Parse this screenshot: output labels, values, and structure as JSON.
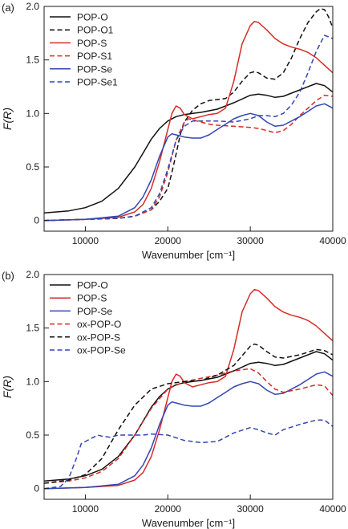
{
  "chart_data": [
    {
      "type": "line",
      "panel_label": "(a)",
      "xlabel": "Wavenumber [cm⁻¹]",
      "ylabel": "F(R)",
      "xlim": [
        5000,
        40000
      ],
      "ylim": [
        -0.1,
        2.0
      ],
      "xticks": [
        10000,
        20000,
        30000,
        40000
      ],
      "yticks": [
        0,
        0.5,
        1.0,
        1.5,
        2.0
      ],
      "ytick_labels": [
        "0",
        "0.5",
        "1.0",
        "1.5",
        "2.0"
      ],
      "legend_position": "top-left",
      "series": [
        {
          "name": "POP-O",
          "color": "#111111",
          "dash": "solid",
          "x": [
            5000,
            8000,
            10000,
            12000,
            14000,
            16000,
            17000,
            18000,
            19000,
            20000,
            21000,
            22000,
            23000,
            24000,
            26000,
            28000,
            30000,
            31000,
            32000,
            33000,
            34000,
            36000,
            38000,
            39000,
            40000
          ],
          "y": [
            0.07,
            0.09,
            0.12,
            0.18,
            0.3,
            0.5,
            0.63,
            0.76,
            0.86,
            0.93,
            0.97,
            0.99,
            1.0,
            1.01,
            1.04,
            1.1,
            1.17,
            1.18,
            1.17,
            1.15,
            1.16,
            1.22,
            1.28,
            1.26,
            1.2
          ]
        },
        {
          "name": "POP-O1",
          "color": "#111111",
          "dash": "dashed",
          "x": [
            5000,
            10000,
            14000,
            16000,
            18000,
            19000,
            20000,
            20500,
            21000,
            21500,
            22000,
            23000,
            24000,
            25000,
            26000,
            27000,
            28000,
            29000,
            30000,
            30500,
            31000,
            32000,
            33000,
            34000,
            35000,
            36000,
            37000,
            38000,
            38500,
            39000,
            39500,
            40000
          ],
          "y": [
            0.0,
            0.01,
            0.02,
            0.04,
            0.1,
            0.18,
            0.3,
            0.45,
            0.62,
            0.8,
            0.92,
            1.03,
            1.09,
            1.12,
            1.13,
            1.14,
            1.2,
            1.3,
            1.38,
            1.39,
            1.38,
            1.33,
            1.32,
            1.38,
            1.52,
            1.7,
            1.85,
            1.95,
            1.98,
            1.97,
            1.9,
            1.8
          ]
        },
        {
          "name": "POP-S",
          "color": "#d62b26",
          "dash": "solid",
          "x": [
            5000,
            10000,
            14000,
            16000,
            17000,
            18000,
            19000,
            20000,
            20500,
            21000,
            21500,
            22000,
            23000,
            24000,
            25000,
            26000,
            27000,
            28000,
            29000,
            30000,
            30500,
            31000,
            32000,
            33000,
            34000,
            35000,
            36000,
            37000,
            38000,
            39000,
            40000
          ],
          "y": [
            0.0,
            0.01,
            0.03,
            0.08,
            0.15,
            0.3,
            0.55,
            0.85,
            1.0,
            1.07,
            1.05,
            0.99,
            0.95,
            0.97,
            0.99,
            1.0,
            1.05,
            1.3,
            1.65,
            1.82,
            1.86,
            1.85,
            1.78,
            1.7,
            1.65,
            1.62,
            1.6,
            1.57,
            1.52,
            1.45,
            1.38
          ]
        },
        {
          "name": "POP-S1",
          "color": "#d62b26",
          "dash": "dashed",
          "x": [
            5000,
            10000,
            14000,
            16000,
            18000,
            19000,
            20000,
            21000,
            22000,
            22500,
            23000,
            24000,
            25000,
            26000,
            28000,
            30000,
            31000,
            32000,
            33000,
            34000,
            35000,
            36000,
            38000,
            39000,
            40000
          ],
          "y": [
            0.0,
            0.01,
            0.02,
            0.04,
            0.1,
            0.22,
            0.45,
            0.75,
            0.92,
            0.95,
            0.94,
            0.92,
            0.9,
            0.89,
            0.88,
            0.87,
            0.86,
            0.84,
            0.82,
            0.84,
            0.9,
            0.98,
            1.12,
            1.17,
            1.16
          ]
        },
        {
          "name": "POP-Se",
          "color": "#3446b2",
          "dash": "solid",
          "x": [
            5000,
            10000,
            14000,
            16000,
            17000,
            18000,
            19000,
            20000,
            20500,
            21000,
            22000,
            23000,
            24000,
            25000,
            26000,
            27000,
            28000,
            29000,
            30000,
            31000,
            32000,
            33000,
            34000,
            35000,
            36000,
            37000,
            38000,
            39000,
            40000
          ],
          "y": [
            0.0,
            0.01,
            0.04,
            0.12,
            0.22,
            0.38,
            0.6,
            0.78,
            0.81,
            0.8,
            0.78,
            0.77,
            0.77,
            0.8,
            0.85,
            0.9,
            0.95,
            0.98,
            1.0,
            0.98,
            0.92,
            0.88,
            0.89,
            0.93,
            0.97,
            1.02,
            1.07,
            1.09,
            1.05
          ]
        },
        {
          "name": "POP-Se1",
          "color": "#3446b2",
          "dash": "dashed",
          "x": [
            5000,
            10000,
            14000,
            16000,
            18000,
            19000,
            20000,
            21000,
            22000,
            23000,
            24000,
            26000,
            28000,
            30000,
            31000,
            32000,
            33000,
            34000,
            35000,
            36000,
            37000,
            38000,
            39000,
            40000
          ],
          "y": [
            0.0,
            0.01,
            0.02,
            0.04,
            0.12,
            0.25,
            0.48,
            0.75,
            0.88,
            0.93,
            0.93,
            0.93,
            0.92,
            0.95,
            0.98,
            0.98,
            0.97,
            1.0,
            1.08,
            1.2,
            1.38,
            1.58,
            1.73,
            1.7
          ]
        }
      ]
    },
    {
      "type": "line",
      "panel_label": "(b)",
      "xlabel": "Wavenumber [cm⁻¹]",
      "ylabel": "F(R)",
      "xlim": [
        5000,
        40000
      ],
      "ylim": [
        -0.1,
        2.0
      ],
      "xticks": [
        10000,
        20000,
        30000,
        40000
      ],
      "yticks": [
        0,
        0.5,
        1.0,
        1.5,
        2.0
      ],
      "ytick_labels": [
        "0",
        "0.5",
        "1.0",
        "1.5",
        "2.0"
      ],
      "legend_position": "top-left",
      "series": [
        {
          "name": "POP-O",
          "color": "#111111",
          "dash": "solid",
          "x": [
            5000,
            8000,
            10000,
            12000,
            14000,
            16000,
            17000,
            18000,
            19000,
            20000,
            21000,
            22000,
            23000,
            24000,
            26000,
            28000,
            30000,
            31000,
            32000,
            33000,
            34000,
            36000,
            38000,
            39000,
            40000
          ],
          "y": [
            0.07,
            0.09,
            0.12,
            0.18,
            0.3,
            0.5,
            0.63,
            0.76,
            0.86,
            0.93,
            0.97,
            0.99,
            1.0,
            1.01,
            1.04,
            1.1,
            1.17,
            1.18,
            1.17,
            1.15,
            1.16,
            1.22,
            1.28,
            1.26,
            1.2
          ]
        },
        {
          "name": "POP-S",
          "color": "#d62b26",
          "dash": "solid",
          "x": [
            5000,
            10000,
            14000,
            16000,
            17000,
            18000,
            19000,
            20000,
            20500,
            21000,
            21500,
            22000,
            23000,
            24000,
            25000,
            26000,
            27000,
            28000,
            29000,
            30000,
            30500,
            31000,
            32000,
            33000,
            34000,
            35000,
            36000,
            37000,
            38000,
            39000,
            40000
          ],
          "y": [
            0.0,
            0.01,
            0.03,
            0.08,
            0.15,
            0.3,
            0.55,
            0.85,
            1.0,
            1.07,
            1.05,
            0.99,
            0.95,
            0.97,
            0.99,
            1.0,
            1.05,
            1.3,
            1.65,
            1.82,
            1.86,
            1.85,
            1.78,
            1.7,
            1.65,
            1.62,
            1.6,
            1.57,
            1.52,
            1.45,
            1.38
          ]
        },
        {
          "name": "POP-Se",
          "color": "#3446b2",
          "dash": "solid",
          "x": [
            5000,
            10000,
            14000,
            16000,
            17000,
            18000,
            19000,
            20000,
            20500,
            21000,
            22000,
            23000,
            24000,
            25000,
            26000,
            27000,
            28000,
            29000,
            30000,
            31000,
            32000,
            33000,
            34000,
            35000,
            36000,
            37000,
            38000,
            39000,
            40000
          ],
          "y": [
            0.0,
            0.01,
            0.04,
            0.12,
            0.22,
            0.38,
            0.6,
            0.78,
            0.81,
            0.8,
            0.78,
            0.77,
            0.77,
            0.8,
            0.85,
            0.9,
            0.95,
            0.98,
            1.0,
            0.98,
            0.92,
            0.88,
            0.89,
            0.93,
            0.97,
            1.02,
            1.07,
            1.09,
            1.05
          ]
        },
        {
          "name": "ox-POP-O",
          "color": "#d62b26",
          "dash": "dashed",
          "x": [
            5000,
            8000,
            10000,
            12000,
            14000,
            16000,
            18000,
            20000,
            22000,
            24000,
            26000,
            28000,
            30000,
            31000,
            32000,
            33000,
            34000,
            36000,
            38000,
            39000,
            40000
          ],
          "y": [
            0.05,
            0.07,
            0.1,
            0.16,
            0.28,
            0.5,
            0.75,
            0.93,
            1.0,
            1.03,
            1.06,
            1.1,
            1.12,
            1.08,
            1.0,
            0.93,
            0.9,
            0.93,
            0.97,
            0.96,
            0.87
          ]
        },
        {
          "name": "ox-POP-S",
          "color": "#111111",
          "dash": "dashed",
          "x": [
            5000,
            8000,
            10000,
            12000,
            14000,
            16000,
            18000,
            20000,
            22000,
            24000,
            26000,
            28000,
            30000,
            30500,
            31000,
            32000,
            33000,
            34000,
            36000,
            38000,
            39000,
            40000
          ],
          "y": [
            0.05,
            0.08,
            0.13,
            0.28,
            0.55,
            0.78,
            0.93,
            0.98,
            1.0,
            1.01,
            1.06,
            1.15,
            1.33,
            1.35,
            1.34,
            1.28,
            1.23,
            1.22,
            1.25,
            1.3,
            1.29,
            1.25
          ]
        },
        {
          "name": "ox-POP-Se",
          "color": "#3446b2",
          "dash": "dashed",
          "x": [
            5000,
            7000,
            8000,
            9000,
            9500,
            10000,
            10500,
            11000,
            11500,
            12000,
            13000,
            14000,
            15000,
            16000,
            17000,
            18000,
            20000,
            22000,
            24000,
            26000,
            28000,
            30000,
            31000,
            32000,
            33000,
            34000,
            36000,
            38000,
            39000,
            40000
          ],
          "y": [
            0.0,
            0.02,
            0.1,
            0.3,
            0.42,
            0.44,
            0.46,
            0.48,
            0.5,
            0.49,
            0.48,
            0.5,
            0.5,
            0.5,
            0.5,
            0.51,
            0.5,
            0.45,
            0.43,
            0.44,
            0.52,
            0.57,
            0.55,
            0.52,
            0.5,
            0.55,
            0.6,
            0.64,
            0.64,
            0.58
          ]
        }
      ]
    }
  ]
}
